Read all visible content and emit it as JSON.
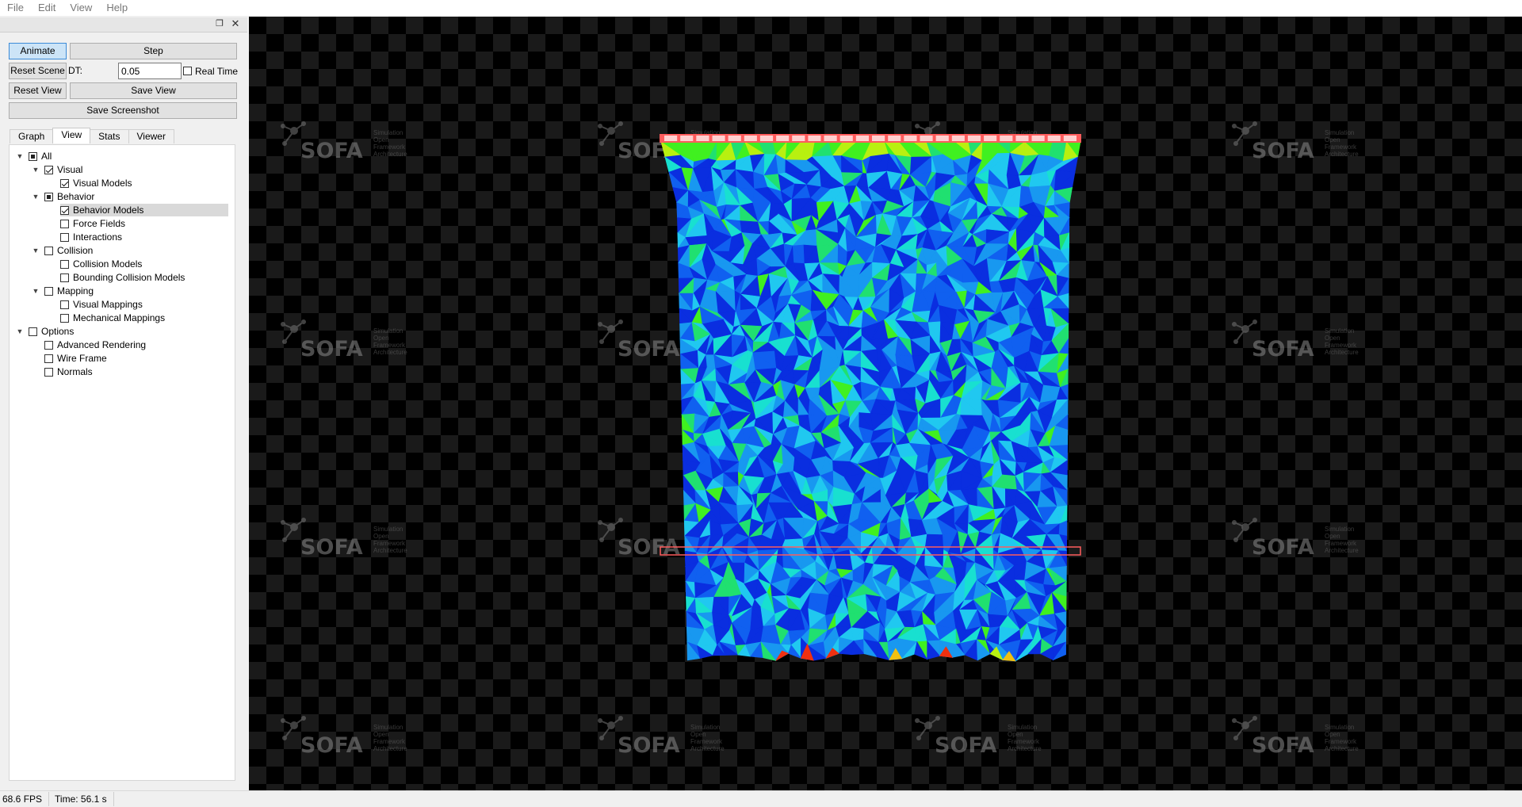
{
  "menu": [
    "File",
    "Edit",
    "View",
    "Help"
  ],
  "dock": {
    "float_icon": "❐",
    "close_icon": "✕"
  },
  "controls": {
    "animate": "Animate",
    "step": "Step",
    "reset_scene": "Reset Scene",
    "dt_label": "DT:",
    "dt_value": "0.05",
    "real_time": "Real Time",
    "reset_view": "Reset View",
    "save_view": "Save View",
    "save_screenshot": "Save Screenshot"
  },
  "tabs": [
    "Graph",
    "View",
    "Stats",
    "Viewer"
  ],
  "tree": [
    {
      "label": "All",
      "level": 0,
      "state": "partial",
      "expanded": true
    },
    {
      "label": "Visual",
      "level": 1,
      "state": "checked",
      "expanded": true
    },
    {
      "label": "Visual Models",
      "level": 2,
      "state": "checked"
    },
    {
      "label": "Behavior",
      "level": 1,
      "state": "partial",
      "expanded": true
    },
    {
      "label": "Behavior Models",
      "level": 2,
      "state": "checked",
      "selected": true
    },
    {
      "label": "Force Fields",
      "level": 2,
      "state": "unchecked"
    },
    {
      "label": "Interactions",
      "level": 2,
      "state": "unchecked"
    },
    {
      "label": "Collision",
      "level": 1,
      "state": "unchecked",
      "expanded": true
    },
    {
      "label": "Collision Models",
      "level": 2,
      "state": "unchecked"
    },
    {
      "label": "Bounding Collision Models",
      "level": 2,
      "state": "unchecked"
    },
    {
      "label": "Mapping",
      "level": 1,
      "state": "unchecked",
      "expanded": true
    },
    {
      "label": "Visual Mappings",
      "level": 2,
      "state": "unchecked"
    },
    {
      "label": "Mechanical Mappings",
      "level": 2,
      "state": "unchecked"
    },
    {
      "label": "Options",
      "level": 0,
      "state": "unchecked",
      "expanded": true
    },
    {
      "label": "Advanced Rendering",
      "level": 1,
      "state": "unchecked"
    },
    {
      "label": "Wire Frame",
      "level": 1,
      "state": "unchecked"
    },
    {
      "label": "Normals",
      "level": 1,
      "state": "unchecked"
    }
  ],
  "watermark": {
    "text": "SOFA",
    "sub": [
      "Simulation",
      "Open",
      "Framework",
      "Architecture"
    ]
  },
  "status": {
    "fps": "68.6 FPS",
    "time": "Time: 56.1 s"
  },
  "colors": {
    "mesh": [
      "#0a2ee0",
      "#1060f0",
      "#1898f0",
      "#20c8f0",
      "#18e0d0",
      "#20e070",
      "#40f020",
      "#b8f010",
      "#f0c010",
      "#f03010"
    ],
    "constraint_box": "#ff5c5c",
    "constraint_fill": "#ffd0d0"
  }
}
